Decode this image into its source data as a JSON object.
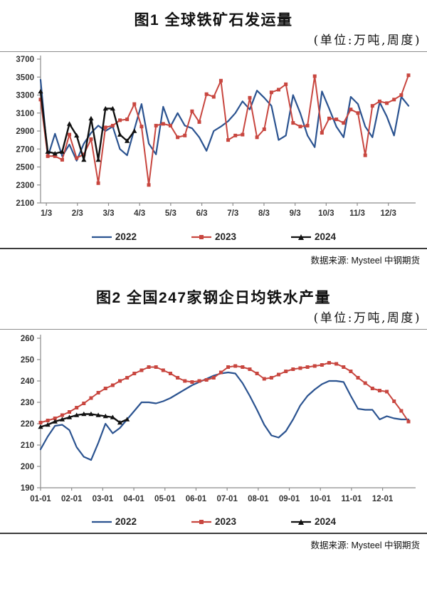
{
  "figure1": {
    "title": "图1 全球铁矿石发运量",
    "subtitle": "(单位:万吨,周度)",
    "source": "数据来源: Mysteel 中钢期货"
  },
  "figure2": {
    "title": "图2 全国247家钢企日均铁水产量",
    "subtitle": "(单位:万吨,周度)",
    "source": "数据来源: Mysteel 中钢期货"
  },
  "colors": {
    "s2022": "#2b5390",
    "s2023": "#c8463f",
    "s2024": "#111111",
    "axis": "#8c8c8c",
    "text": "#333333"
  },
  "chart_data": [
    {
      "type": "line",
      "title": "图1 全球铁矿石发运量",
      "unit_note": "(单位:万吨,周度)",
      "source": "数据来源: Mysteel 中钢期货",
      "x_tick_labels": [
        "1/3",
        "2/3",
        "3/3",
        "4/3",
        "5/3",
        "6/3",
        "7/3",
        "8/3",
        "9/3",
        "10/3",
        "11/3",
        "12/3"
      ],
      "ylim": [
        2100,
        3700
      ],
      "ytick_step": 200,
      "n_slots": 52,
      "grid": false,
      "legend_position": "bottom",
      "series": [
        {
          "name": "2022",
          "color_key": "s2022",
          "marker": "none",
          "width": 2.2,
          "values": [
            3470,
            2610,
            2870,
            2620,
            2750,
            2570,
            2760,
            2880,
            2960,
            2900,
            2950,
            2700,
            2630,
            2920,
            3200,
            2760,
            2640,
            3170,
            2950,
            3100,
            2960,
            2930,
            2830,
            2680,
            2900,
            2950,
            3010,
            3100,
            3230,
            3140,
            3350,
            3270,
            3180,
            2800,
            2850,
            3300,
            3100,
            2850,
            2720,
            3340,
            3150,
            2950,
            2830,
            3280,
            3200,
            2950,
            2830,
            3220,
            3060,
            2850,
            3280,
            3180
          ]
        },
        {
          "name": "2023",
          "color_key": "s2023",
          "marker": "square",
          "width": 2,
          "values": [
            3250,
            2620,
            2620,
            2580,
            2860,
            2600,
            2640,
            2810,
            2320,
            2940,
            2960,
            3020,
            3030,
            3200,
            2950,
            2300,
            2960,
            2980,
            2960,
            2830,
            2850,
            3120,
            3000,
            3310,
            3280,
            3460,
            2800,
            2850,
            2860,
            3270,
            2830,
            2920,
            3330,
            3360,
            3420,
            2990,
            2950,
            2960,
            3510,
            2880,
            3040,
            3030,
            2990,
            3140,
            3100,
            2630,
            3180,
            3230,
            3210,
            3250,
            3300,
            3520
          ]
        },
        {
          "name": "2024",
          "color_key": "s2024",
          "marker": "triangle",
          "width": 2.4,
          "values": [
            3340,
            2670,
            2650,
            2670,
            2980,
            2850,
            2580,
            3040,
            2580,
            3150,
            3150,
            2860,
            2790,
            2900
          ]
        }
      ]
    },
    {
      "type": "line",
      "title": "图2 全国247家钢企日均铁水产量",
      "unit_note": "(单位:万吨,周度)",
      "source": "数据来源: Mysteel 中钢期货",
      "x_tick_labels": [
        "01-01",
        "02-01",
        "03-01",
        "04-01",
        "05-01",
        "06-01",
        "07-01",
        "08-01",
        "09-01",
        "10-01",
        "11-01",
        "12-01"
      ],
      "ylim": [
        190,
        260
      ],
      "ytick_step": 10,
      "n_slots": 52,
      "grid": false,
      "legend_position": "bottom",
      "series": [
        {
          "name": "2022",
          "color_key": "s2022",
          "marker": "none",
          "width": 2.2,
          "values": [
            208,
            214,
            219,
            219.5,
            217,
            209,
            204.5,
            203,
            211,
            220,
            215.5,
            218,
            222,
            226,
            230,
            230,
            229.5,
            230.5,
            232,
            234,
            236,
            238,
            239.5,
            241,
            242.5,
            243.5,
            244,
            243.5,
            239,
            233,
            226.5,
            219.5,
            214.5,
            213.5,
            216.5,
            222,
            228.5,
            233,
            236,
            238.5,
            240,
            240,
            239.5,
            233,
            227,
            226.5,
            226.5,
            222,
            223.5,
            222.5,
            222,
            222
          ]
        },
        {
          "name": "2023",
          "color_key": "s2023",
          "marker": "square",
          "width": 2,
          "values": [
            220.5,
            221.5,
            222.5,
            224,
            225.5,
            227.5,
            229.5,
            232,
            234.5,
            236.5,
            238,
            240,
            241.5,
            243.5,
            245,
            246.5,
            246.5,
            245,
            243.5,
            241.5,
            240,
            239.5,
            240,
            240.5,
            241.5,
            244,
            246.5,
            247,
            246.5,
            245.5,
            243.5,
            241,
            241.5,
            243,
            244.5,
            245.5,
            246,
            246.5,
            247,
            247.5,
            248.5,
            248,
            246.5,
            244.5,
            241.5,
            239,
            236.5,
            235.5,
            235,
            230.5,
            226,
            221
          ]
        },
        {
          "name": "2024",
          "color_key": "s2024",
          "marker": "triangle",
          "width": 2.4,
          "values": [
            218.5,
            219.5,
            221,
            222,
            223,
            224,
            224.5,
            224.5,
            224,
            223.5,
            223,
            220.5,
            222
          ]
        }
      ]
    }
  ]
}
